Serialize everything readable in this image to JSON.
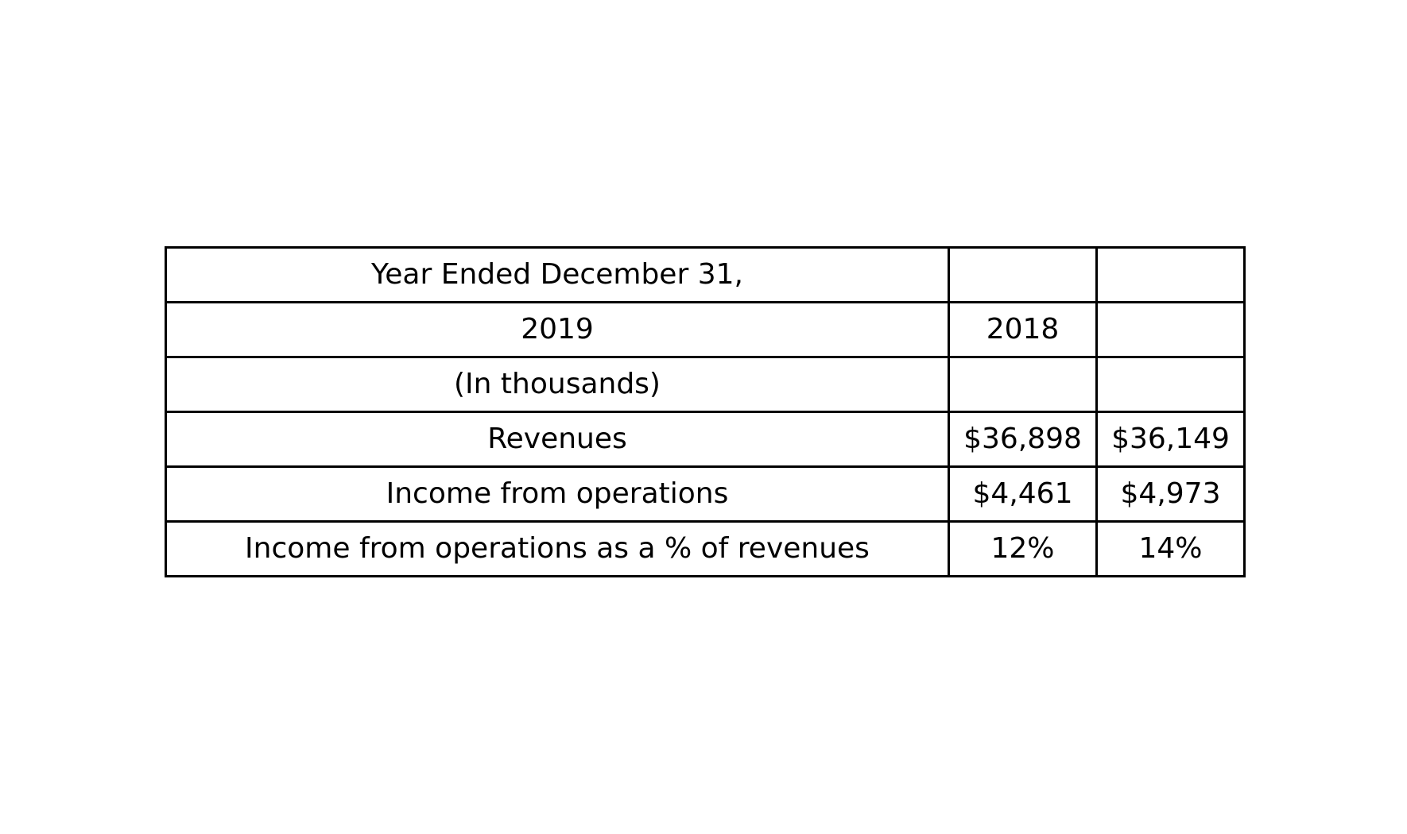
{
  "table": {
    "rows": [
      [
        "Year Ended December 31,",
        "",
        ""
      ],
      [
        "2019",
        "2018",
        ""
      ],
      [
        "(In thousands)",
        "",
        ""
      ],
      [
        "Revenues",
        "$36,898",
        "$36,149"
      ],
      [
        "Income from operations",
        "$4,461",
        "$4,973"
      ],
      [
        "Income from operations as a % of revenues",
        "12%",
        "14%"
      ]
    ]
  },
  "colors": {
    "border": "#000000",
    "background": "#ffffff",
    "text": "#000000"
  }
}
